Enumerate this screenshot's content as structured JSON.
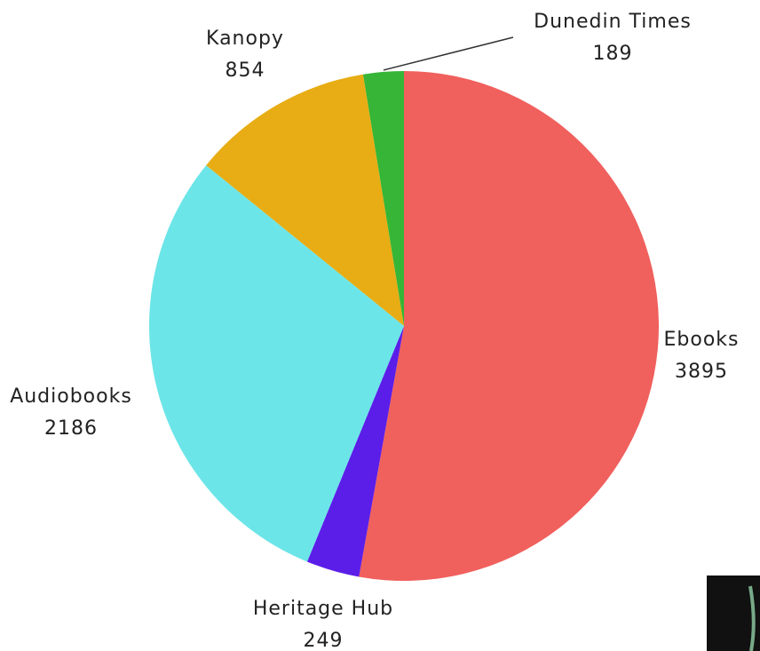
{
  "chart_data": {
    "type": "pie",
    "categories": [
      "Ebooks",
      "Heritage Hub",
      "Audiobooks",
      "Kanopy",
      "Dunedin Times"
    ],
    "values": [
      3895,
      249,
      2186,
      854,
      189
    ],
    "colors": [
      "#f0605d",
      "#5b1ee8",
      "#6ce5e8",
      "#e8ad14",
      "#36b536"
    ]
  }
}
